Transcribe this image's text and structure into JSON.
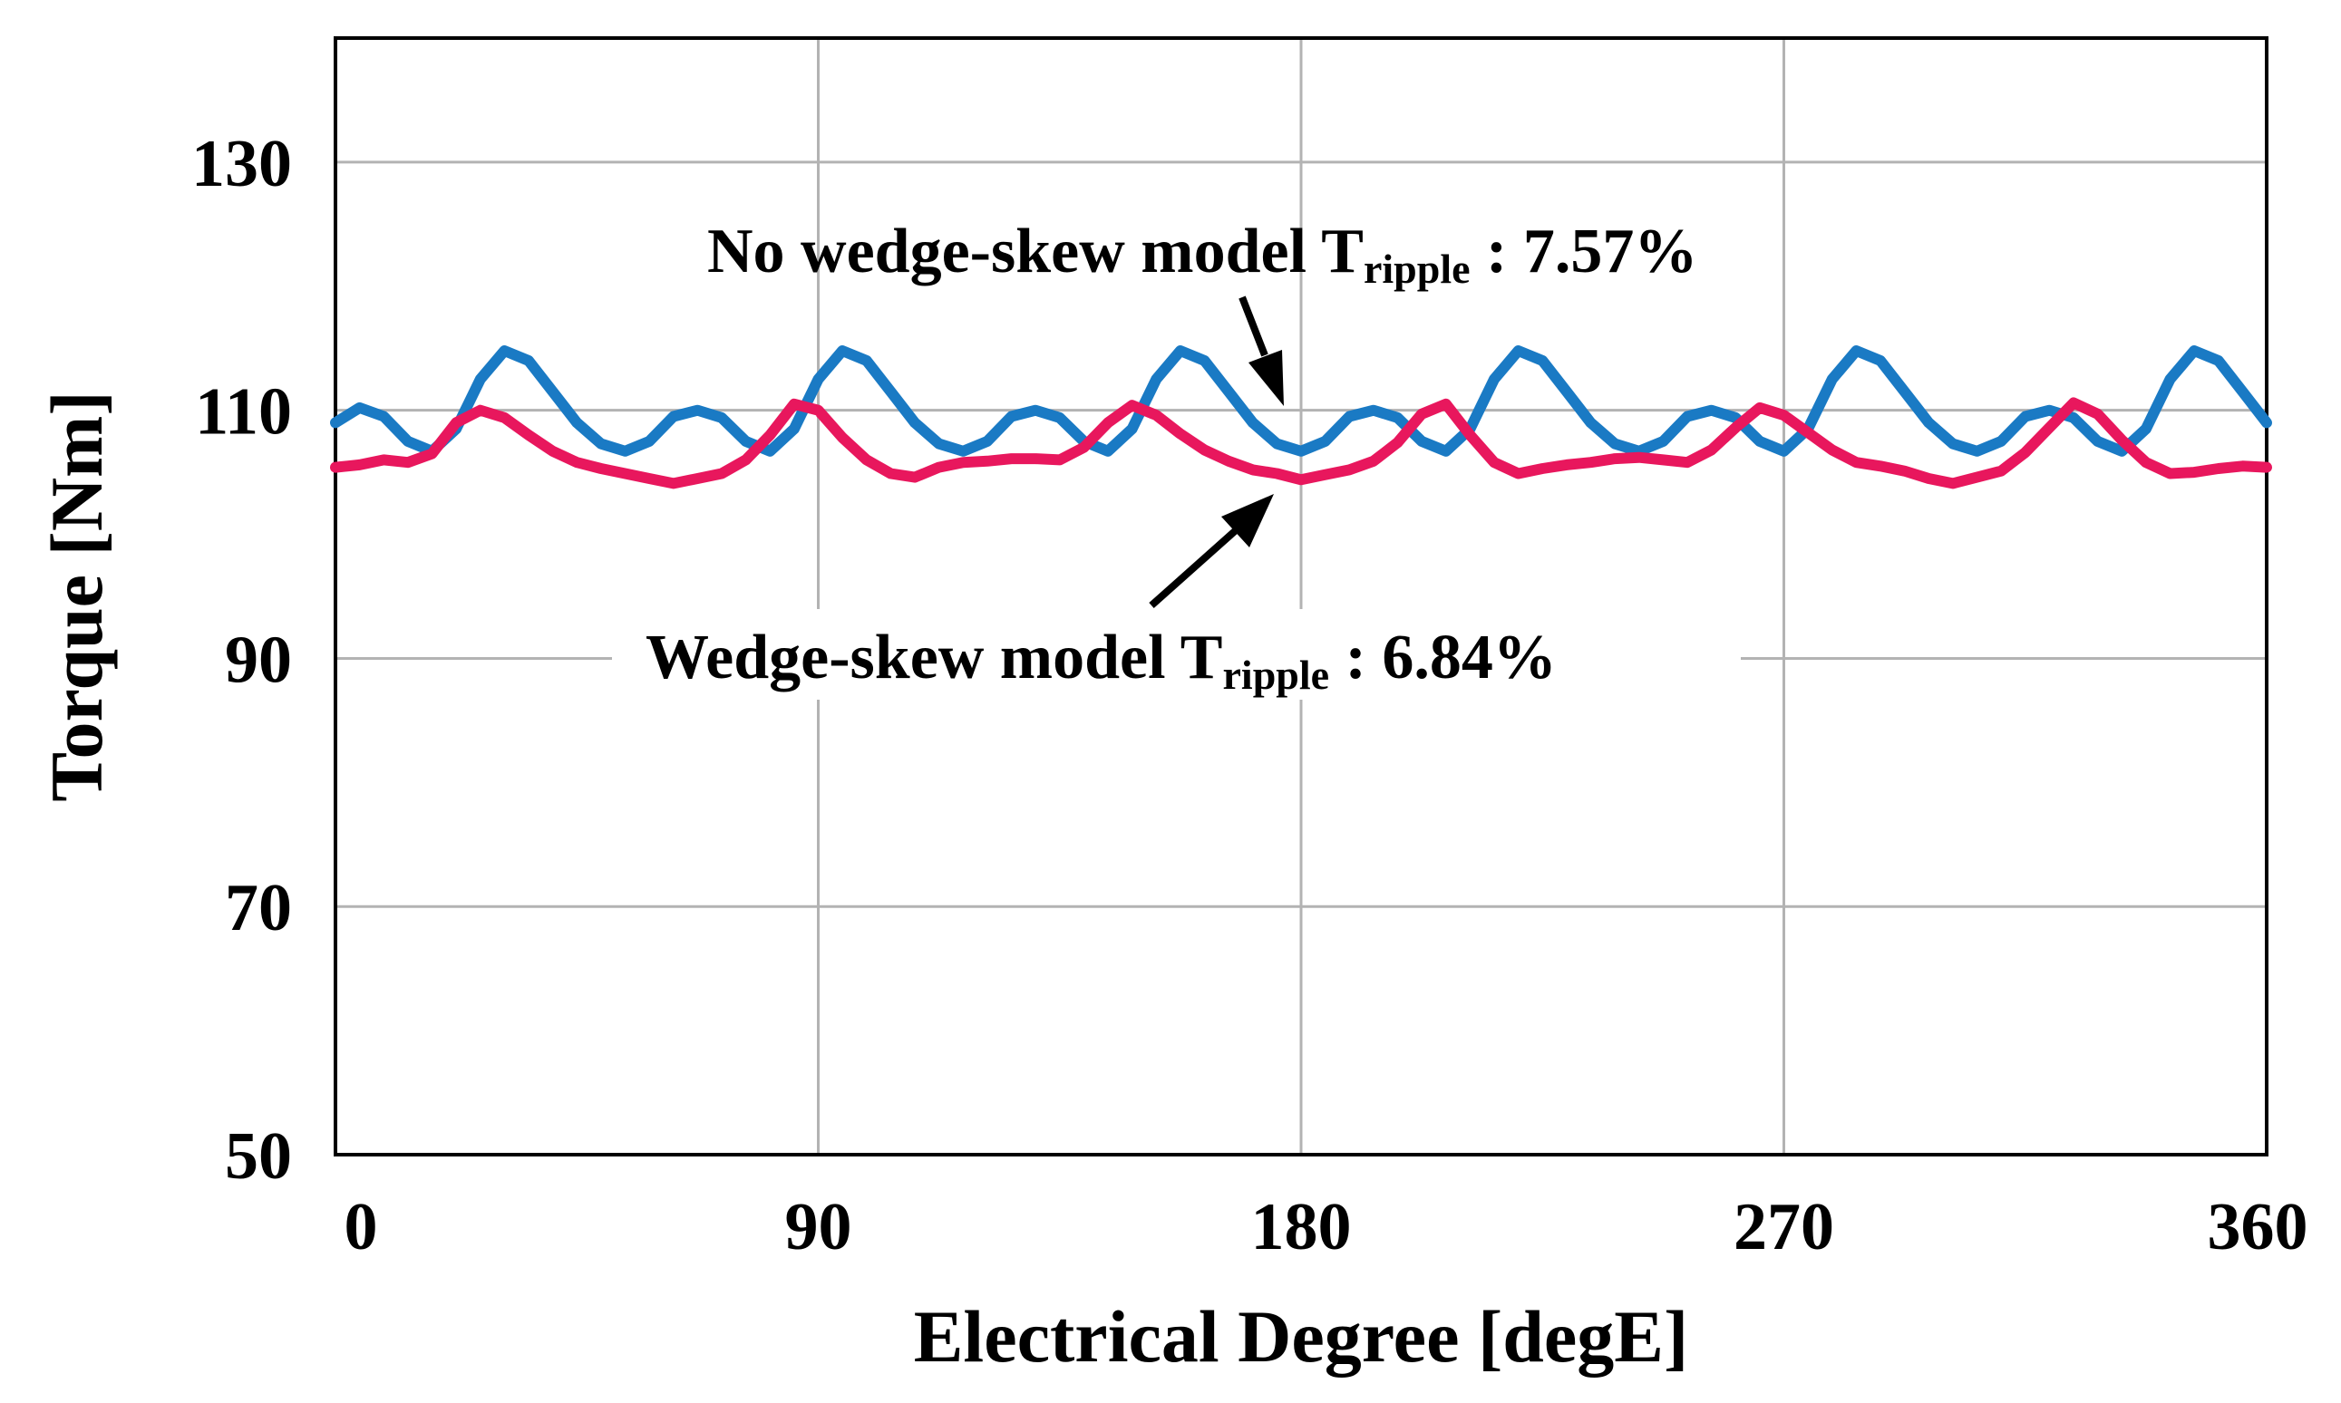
{
  "chart_data": {
    "type": "line",
    "title": "",
    "xlabel": "Electrical Degree [degE]",
    "ylabel": "Torque [Nm]",
    "xlim": [
      0,
      360
    ],
    "ylim": [
      50,
      140
    ],
    "xticks": [
      0,
      90,
      180,
      270,
      360
    ],
    "yticks": [
      50,
      70,
      90,
      110,
      130
    ],
    "xtick_labels": [
      "0",
      "90",
      "180",
      "270",
      "360"
    ],
    "ytick_labels": [
      "50",
      "70",
      "90",
      "110",
      "130"
    ],
    "grid": true,
    "series": [
      {
        "name": "No wedge-skew model",
        "color": "#1a7ac4",
        "x": [
          0,
          4.5,
          9,
          13.5,
          18,
          22.5,
          27,
          31.5,
          36,
          40.5,
          45,
          49.5,
          54,
          58.5,
          63,
          67.5,
          72,
          76.5,
          81,
          85.5,
          90,
          94.5,
          99,
          103.5,
          108,
          112.5,
          117,
          121.5,
          126,
          130.5,
          135,
          139.5,
          144,
          148.5,
          153,
          157.5,
          162,
          166.5,
          171,
          175.5,
          180,
          184.5,
          189,
          193.5,
          198,
          202.5,
          207,
          211.5,
          216,
          220.5,
          225,
          229.5,
          234,
          238.5,
          243,
          247.5,
          252,
          256.5,
          261,
          265.5,
          270,
          274.5,
          279,
          283.5,
          288,
          292.5,
          297,
          301.5,
          306,
          310.5,
          315,
          319.5,
          324,
          328.5,
          333,
          337.5,
          342,
          346.5,
          351,
          355.5,
          360
        ],
        "y": [
          109,
          110.2,
          109.5,
          107.5,
          106.7,
          108.5,
          112.5,
          114.8,
          114,
          111.5,
          109,
          107.3,
          106.7,
          107.5,
          109.5,
          110,
          109.4,
          107.5,
          106.7,
          108.5,
          112.5,
          114.8,
          114,
          111.5,
          109,
          107.3,
          106.7,
          107.5,
          109.5,
          110,
          109.4,
          107.5,
          106.7,
          108.5,
          112.5,
          114.8,
          114,
          111.5,
          109,
          107.3,
          106.7,
          107.5,
          109.5,
          110,
          109.4,
          107.5,
          106.7,
          108.5,
          112.5,
          114.8,
          114,
          111.5,
          109,
          107.3,
          106.7,
          107.5,
          109.5,
          110,
          109.4,
          107.5,
          106.7,
          108.5,
          112.5,
          114.8,
          114,
          111.5,
          109,
          107.3,
          106.7,
          107.5,
          109.5,
          110,
          109.4,
          107.5,
          106.7,
          108.5,
          112.5,
          114.8,
          114,
          111.5,
          109
        ]
      },
      {
        "name": "Wedge-skew model",
        "color": "#e8175d",
        "x": [
          0,
          4.5,
          9,
          13.5,
          18,
          22.5,
          27,
          31.5,
          36,
          40.5,
          45,
          49.5,
          54,
          58.5,
          63,
          67.5,
          72,
          76.5,
          81,
          85.5,
          90,
          94.5,
          99,
          103.5,
          108,
          112.5,
          117,
          121.5,
          126,
          130.5,
          135,
          139.5,
          144,
          148.5,
          153,
          157.5,
          162,
          166.5,
          171,
          175.5,
          180,
          184.5,
          189,
          193.5,
          198,
          202.5,
          207,
          211.5,
          216,
          220.5,
          225,
          229.5,
          234,
          238.5,
          243,
          247.5,
          252,
          256.5,
          261,
          265.5,
          270,
          274.5,
          279,
          283.5,
          288,
          292.5,
          297,
          301.5,
          306,
          310.5,
          315,
          319.5,
          324,
          328.5,
          333,
          337.5,
          342,
          346.5,
          351,
          355.5,
          360
        ],
        "y": [
          105.4,
          105.6,
          106,
          105.8,
          106.5,
          109,
          110,
          109.4,
          108,
          106.7,
          105.8,
          105.3,
          104.9,
          104.5,
          104.1,
          104.5,
          104.9,
          106,
          108,
          110.5,
          110,
          107.8,
          106,
          104.9,
          104.6,
          105.4,
          105.8,
          105.9,
          106.1,
          106.1,
          106,
          107,
          109,
          110.4,
          109.6,
          108.1,
          106.8,
          105.9,
          105.2,
          104.9,
          104.4,
          104.8,
          105.2,
          105.9,
          107.4,
          109.7,
          110.5,
          108,
          105.8,
          104.9,
          105.3,
          105.6,
          105.8,
          106.1,
          106.2,
          106,
          105.8,
          106.8,
          108.6,
          110.2,
          109.6,
          108.2,
          106.8,
          105.8,
          105.5,
          105.1,
          104.5,
          104.1,
          104.6,
          105.1,
          106.6,
          108.6,
          110.6,
          109.7,
          107.6,
          105.8,
          104.9,
          105,
          105.3,
          105.5,
          105.4
        ]
      }
    ],
    "annotations": [
      {
        "id": "blue",
        "main": "No wedge-skew model T",
        "sub": "ripple",
        "tail": " : 7.57%"
      },
      {
        "id": "pink",
        "main": "Wedge-skew model T",
        "sub": "ripple",
        "tail": " : 6.84%"
      }
    ]
  }
}
